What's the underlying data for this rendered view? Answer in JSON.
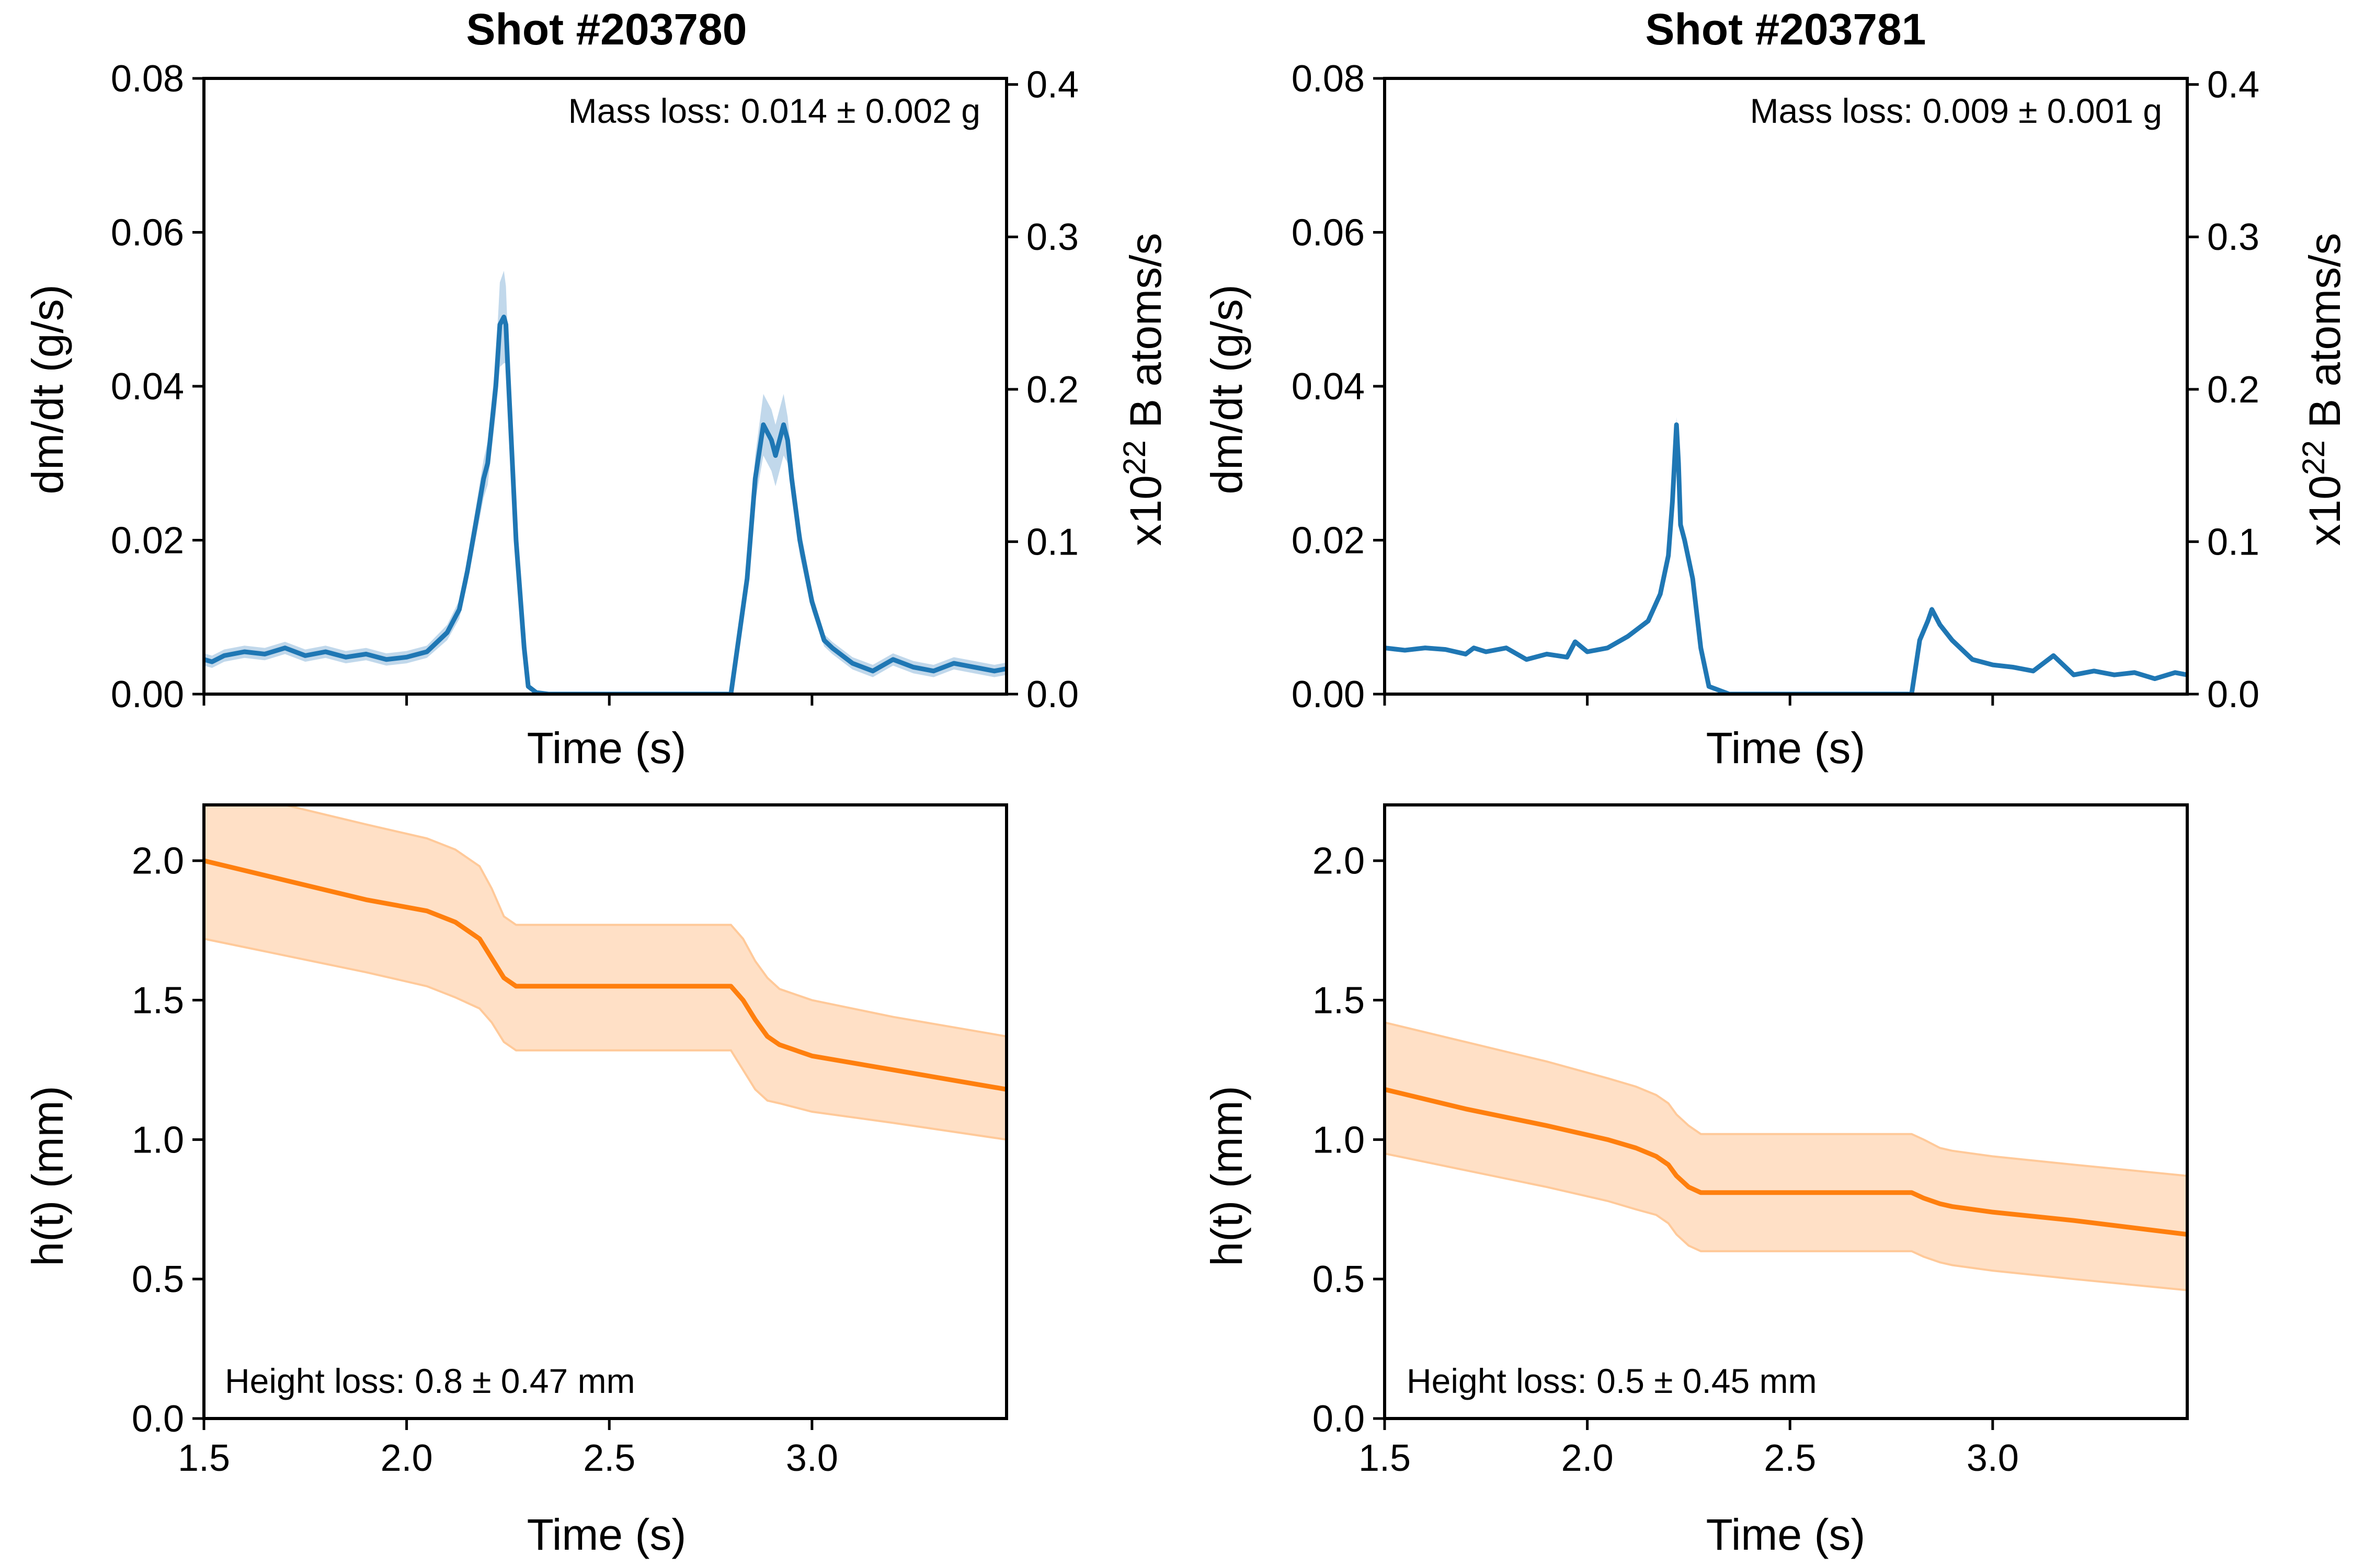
{
  "colors": {
    "rate_line": "#1f77b4",
    "rate_band": "#a6c7e3",
    "height_line": "#ff7f0e",
    "height_band": "#ffd8b8",
    "height_band_edge": "#ffc999"
  },
  "shot1": {
    "title": "Shot #203780",
    "rate_annotation": "Mass loss: 0.014 ± 0.002 g",
    "height_annotation": "Height loss: 0.8 ± 0.47 mm"
  },
  "shot2": {
    "title": "Shot #203781",
    "rate_annotation": "Mass loss: 0.009 ± 0.001 g",
    "height_annotation": "Height loss: 0.5 ± 0.45 mm"
  },
  "labels": {
    "rate_ylabel": "dm/dt (g/s)",
    "right_ylabel_prefix": "x10",
    "right_ylabel_exp": "22",
    "right_ylabel_suffix": " B atoms/s",
    "height_ylabel": "h(t) (mm)",
    "xlabel": "Time (s)"
  },
  "chart_data": [
    {
      "type": "line",
      "panel": "top-left",
      "title": "Shot #203780",
      "xlabel": "Time (s)",
      "ylabel": "dm/dt (g/s)",
      "ylabel_right": "x10^22 B atoms/s",
      "annotation": "Mass loss: 0.014 ± 0.002 g",
      "xlim": [
        1.5,
        3.48
      ],
      "ylim": [
        0,
        0.08
      ],
      "yticks": [
        "0.00",
        "0.02",
        "0.04",
        "0.06",
        "0.08"
      ],
      "yticks_right": [
        "0.0",
        "0.1",
        "0.2",
        "0.3",
        "0.4"
      ],
      "right_axis_scale_per_g": 5.05,
      "xticks_unlabeled": [
        1.5,
        2.0,
        2.5,
        3.0
      ],
      "x": [
        1.5,
        1.52,
        1.55,
        1.6,
        1.65,
        1.7,
        1.75,
        1.8,
        1.85,
        1.9,
        1.95,
        2.0,
        2.05,
        2.1,
        2.13,
        2.15,
        2.17,
        2.19,
        2.2,
        2.22,
        2.23,
        2.24,
        2.245,
        2.25,
        2.27,
        2.29,
        2.3,
        2.32,
        2.35,
        2.5,
        2.8,
        2.84,
        2.86,
        2.88,
        2.9,
        2.91,
        2.93,
        2.94,
        2.95,
        2.97,
        3.0,
        3.03,
        3.05,
        3.1,
        3.15,
        3.2,
        3.25,
        3.3,
        3.35,
        3.4,
        3.45,
        3.48
      ],
      "y": [
        0.0045,
        0.0042,
        0.005,
        0.0055,
        0.0052,
        0.006,
        0.005,
        0.0055,
        0.0048,
        0.0052,
        0.0045,
        0.0048,
        0.0055,
        0.008,
        0.011,
        0.016,
        0.022,
        0.028,
        0.03,
        0.04,
        0.048,
        0.049,
        0.048,
        0.042,
        0.02,
        0.006,
        0.001,
        0.0002,
        0.0,
        0.0,
        0.0,
        0.015,
        0.028,
        0.035,
        0.033,
        0.031,
        0.035,
        0.033,
        0.028,
        0.02,
        0.012,
        0.007,
        0.006,
        0.004,
        0.003,
        0.0045,
        0.0035,
        0.003,
        0.004,
        0.0035,
        0.003,
        0.0033
      ],
      "band_halfwidth": [
        0.0008,
        0.0008,
        0.0008,
        0.0008,
        0.0008,
        0.0008,
        0.0008,
        0.0008,
        0.0008,
        0.0008,
        0.0008,
        0.0008,
        0.0008,
        0.001,
        0.0012,
        0.0016,
        0.002,
        0.0025,
        0.0028,
        0.0035,
        0.0055,
        0.006,
        0.005,
        0.004,
        0.002,
        0.0008,
        0.0002,
        0.0,
        0.0,
        0.0,
        0.0,
        0.0015,
        0.003,
        0.004,
        0.004,
        0.004,
        0.004,
        0.003,
        0.0025,
        0.002,
        0.0012,
        0.0008,
        0.0008,
        0.0008,
        0.0008,
        0.0008,
        0.0008,
        0.0008,
        0.0008,
        0.0008,
        0.0008,
        0.0008
      ]
    },
    {
      "type": "line",
      "panel": "top-right",
      "title": "Shot #203781",
      "xlabel": "Time (s)",
      "ylabel": "dm/dt (g/s)",
      "ylabel_right": "x10^22 B atoms/s",
      "annotation": "Mass loss: 0.009 ± 0.001 g",
      "xlim": [
        1.5,
        3.48
      ],
      "ylim": [
        0,
        0.08
      ],
      "yticks": [
        "0.00",
        "0.02",
        "0.04",
        "0.06",
        "0.08"
      ],
      "yticks_right": [
        "0.0",
        "0.1",
        "0.2",
        "0.3",
        "0.4"
      ],
      "right_axis_scale_per_g": 5.05,
      "xticks_unlabeled": [
        1.5,
        2.0,
        2.5,
        3.0
      ],
      "x": [
        1.5,
        1.55,
        1.6,
        1.65,
        1.7,
        1.72,
        1.75,
        1.8,
        1.85,
        1.9,
        1.95,
        1.97,
        2.0,
        2.05,
        2.1,
        2.15,
        2.18,
        2.2,
        2.21,
        2.215,
        2.22,
        2.225,
        2.23,
        2.24,
        2.26,
        2.28,
        2.3,
        2.35,
        2.5,
        2.75,
        2.8,
        2.82,
        2.84,
        2.85,
        2.87,
        2.9,
        2.95,
        3.0,
        3.05,
        3.1,
        3.15,
        3.2,
        3.25,
        3.3,
        3.35,
        3.4,
        3.45,
        3.48
      ],
      "y": [
        0.006,
        0.0057,
        0.006,
        0.0058,
        0.0052,
        0.006,
        0.0055,
        0.006,
        0.0045,
        0.0052,
        0.0048,
        0.0068,
        0.0055,
        0.006,
        0.0075,
        0.0095,
        0.013,
        0.018,
        0.025,
        0.03,
        0.035,
        0.03,
        0.022,
        0.02,
        0.015,
        0.006,
        0.001,
        0.0,
        0.0,
        0.0,
        0.0,
        0.007,
        0.0095,
        0.011,
        0.009,
        0.007,
        0.0045,
        0.0038,
        0.0035,
        0.003,
        0.005,
        0.0025,
        0.003,
        0.0025,
        0.0028,
        0.002,
        0.0028,
        0.0025
      ],
      "band_halfwidth": [
        0.0003,
        0.0003,
        0.0003,
        0.0003,
        0.0003,
        0.0003,
        0.0003,
        0.0003,
        0.0003,
        0.0003,
        0.0003,
        0.0003,
        0.0003,
        0.0003,
        0.0003,
        0.0004,
        0.0005,
        0.0006,
        0.0008,
        0.001,
        0.001,
        0.001,
        0.0008,
        0.0006,
        0.0005,
        0.0003,
        0.0,
        0.0,
        0.0,
        0.0,
        0.0,
        0.0003,
        0.0004,
        0.0004,
        0.0003,
        0.0003,
        0.0003,
        0.0003,
        0.0003,
        0.0003,
        0.0003,
        0.0003,
        0.0003,
        0.0003,
        0.0003,
        0.0003,
        0.0003,
        0.0003
      ]
    },
    {
      "type": "line",
      "panel": "bottom-left",
      "xlabel": "Time (s)",
      "ylabel": "h(t) (mm)",
      "annotation": "Height loss: 0.8 ± 0.47 mm",
      "xlim": [
        1.5,
        3.48
      ],
      "ylim": [
        0,
        2.2
      ],
      "xticks": [
        "1.5",
        "2.0",
        "2.5",
        "3.0"
      ],
      "yticks": [
        "0.0",
        "0.5",
        "1.0",
        "1.5",
        "2.0"
      ],
      "x": [
        1.5,
        1.7,
        1.9,
        2.05,
        2.12,
        2.18,
        2.21,
        2.24,
        2.27,
        2.3,
        2.5,
        2.8,
        2.83,
        2.86,
        2.89,
        2.92,
        3.0,
        3.2,
        3.48
      ],
      "y": [
        2.0,
        1.93,
        1.86,
        1.82,
        1.78,
        1.72,
        1.65,
        1.58,
        1.55,
        1.55,
        1.55,
        1.55,
        1.5,
        1.43,
        1.37,
        1.34,
        1.3,
        1.25,
        1.18
      ],
      "band_lower": [
        1.72,
        1.66,
        1.6,
        1.55,
        1.51,
        1.47,
        1.42,
        1.35,
        1.32,
        1.32,
        1.32,
        1.32,
        1.25,
        1.18,
        1.14,
        1.13,
        1.1,
        1.06,
        1.0
      ],
      "band_upper": [
        2.2,
        2.2,
        2.13,
        2.08,
        2.04,
        1.98,
        1.9,
        1.8,
        1.77,
        1.77,
        1.77,
        1.77,
        1.72,
        1.64,
        1.58,
        1.54,
        1.5,
        1.44,
        1.37
      ]
    },
    {
      "type": "line",
      "panel": "bottom-right",
      "xlabel": "Time (s)",
      "ylabel": "h(t) (mm)",
      "annotation": "Height loss: 0.5 ± 0.45 mm",
      "xlim": [
        1.5,
        3.48
      ],
      "ylim": [
        0,
        2.2
      ],
      "xticks": [
        "1.5",
        "2.0",
        "2.5",
        "3.0"
      ],
      "yticks": [
        "0.0",
        "0.5",
        "1.0",
        "1.5",
        "2.0"
      ],
      "x": [
        1.5,
        1.7,
        1.9,
        2.05,
        2.12,
        2.17,
        2.2,
        2.22,
        2.25,
        2.28,
        2.3,
        2.5,
        2.8,
        2.83,
        2.87,
        2.9,
        3.0,
        3.2,
        3.48
      ],
      "y": [
        1.18,
        1.11,
        1.05,
        1.0,
        0.97,
        0.94,
        0.91,
        0.87,
        0.83,
        0.81,
        0.81,
        0.81,
        0.81,
        0.79,
        0.77,
        0.76,
        0.74,
        0.71,
        0.66
      ],
      "band_lower": [
        0.95,
        0.89,
        0.83,
        0.78,
        0.75,
        0.73,
        0.7,
        0.66,
        0.62,
        0.6,
        0.6,
        0.6,
        0.6,
        0.58,
        0.56,
        0.55,
        0.53,
        0.5,
        0.46
      ],
      "band_upper": [
        1.42,
        1.35,
        1.28,
        1.22,
        1.19,
        1.16,
        1.13,
        1.09,
        1.05,
        1.02,
        1.02,
        1.02,
        1.02,
        1.0,
        0.97,
        0.96,
        0.94,
        0.91,
        0.87
      ]
    }
  ]
}
